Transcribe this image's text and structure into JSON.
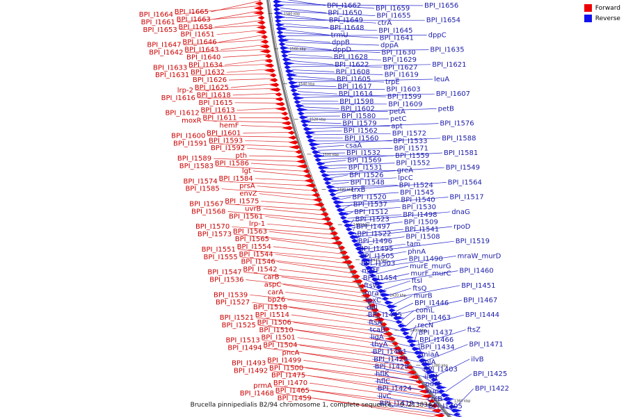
{
  "legend": {
    "forward_label": "Forward",
    "reverse_label": "Reverse",
    "forward_color": "#ee0000",
    "reverse_color": "#1212ee"
  },
  "caption": "Brucella pinnipedialis B2/94 chromosome 1, complete sequence. - 0..2138342",
  "axis": {
    "tick_labels": [
      "1580 kbp",
      "1560 kbp",
      "1540 kbp",
      "1520 kbp",
      "1500 kbp",
      "1480 kbp",
      "1460 kbp",
      "1440 kbp",
      "1420 kbp",
      "1400 kbp",
      "1380 kbp",
      "1360 kbp"
    ]
  },
  "forward_labels": [
    "BPI_I1665",
    "BPI_I1664",
    "BPI_I1663",
    "BPI_I1661",
    "BPI_I1658",
    "BPI_I1653",
    "BPI_I1651",
    "BPI_I1646",
    "BPI_I1647",
    "BPI_I1643",
    "BPI_I1642",
    "BPI_I1640",
    "BPI_I1634",
    "BPI_I1633",
    "BPI_I1632",
    "BPI_I1631",
    "BPI_I1626",
    "BPI_I1625",
    "lrp-2",
    "BPI_I1618",
    "BPI_I1616",
    "BPI_I1615",
    "BPI_I1613",
    "BPI_I1612",
    "BPI_I1611",
    "moxR",
    "hemF",
    "BPI_I1601",
    "BPI_I1600",
    "BPI_I1593",
    "BPI_I1591",
    "BPI_I1592",
    "pth",
    "BPI_I1589",
    "BPI_I1586",
    "BPI_I1583",
    "lgt",
    "BPI_I1584",
    "BPI_I1574",
    "prsA",
    "BPI_I1585",
    "envZ",
    "BPI_I1575",
    "BPI_I1567",
    "uvrB",
    "BPI_I1568",
    "BPI_I1561",
    "lrp-1",
    "BPI_I1570",
    "BPI_I1563",
    "BPI_I1573",
    "BPI_I1565",
    "BPI_I1554",
    "BPI_I1551",
    "BPI_I1544",
    "BPI_I1555",
    "BPI_I1546",
    "BPI_I1542",
    "BPI_I1547",
    "carB",
    "BPI_I1536",
    "aspC",
    "carA",
    "BPI_I1539",
    "bp26",
    "BPI_I1527",
    "BPI_I1518",
    "BPI_I1514",
    "BPI_I1521",
    "BPI_I1506",
    "BPI_I1525",
    "BPI_I1510",
    "BPI_I1501",
    "BPI_I1513",
    "BPI_I1504",
    "BPI_I1494",
    "pncA",
    "BPI_I1499",
    "BPI_I1493",
    "BPI_I1500",
    "BPI_I1492",
    "BPI_I1475",
    "BPI_I1470",
    "prmA",
    "BPI_I1465",
    "BPI_I1468",
    "BPI_I1459"
  ],
  "reverse_labels": [
    "BPI_I1662",
    "BPI_I1659",
    "BPI_I1656",
    "BPI_I1650",
    "BPI_I1655",
    "BPI_I1649",
    "ctrA",
    "BPI_I1654",
    "BPI_I1648",
    "BPI_I1645",
    "trmU",
    "BPI_I1641",
    "dppC",
    "dppB",
    "dppA",
    "dppD",
    "BPI_I1630",
    "BPI_I1635",
    "BPI_I1628",
    "BPI_I1629",
    "BPI_I1622",
    "BPI_I1627",
    "BPI_I1621",
    "BPI_I1608",
    "BPI_I1619",
    "BPI_I1605",
    "trpE",
    "leuA",
    "BPI_I1617",
    "BPI_I1603",
    "BPI_I1614",
    "BPI_I1599",
    "BPI_I1607",
    "BPI_I1598",
    "BPI_I1609",
    "BPI_I1602",
    "petA",
    "petB",
    "BPI_I1580",
    "petC",
    "BPI_I1579",
    "apt",
    "BPI_I1576",
    "BPI_I1562",
    "BPI_I1572",
    "BPI_I1560",
    "BPI_I1533",
    "BPI_I1588",
    "csaA",
    "BPI_I1571",
    "BPI_I1532",
    "BPI_I1559",
    "BPI_I1581",
    "BPI_I1569",
    "BPI_I1552",
    "BPI_I1531",
    "greA",
    "BPI_I1549",
    "BPI_I1526",
    "lpcC",
    "BPI_I1548",
    "BPI_I1524",
    "BPI_I1564",
    "trxB",
    "BPI_I1545",
    "BPI_I1520",
    "BPI_I1540",
    "BPI_I1517",
    "BPI_I1537",
    "BPI_I1530",
    "BPI_I1512",
    "BPI_I1498",
    "dnaG",
    "BPI_I1523",
    "BPI_I1509",
    "BPI_I1497",
    "BPI_I1541",
    "rpoD",
    "BPI_I1522",
    "BPI_I1508",
    "BPI_I1496",
    "tam",
    "BPI_I1519",
    "BPI_I1495",
    "phnA",
    "BPI_I1505",
    "BPI_I1490",
    "mraW_murD",
    "BPI_I1503",
    "murE_murG",
    "metF",
    "murF_murC",
    "BPI_I1460",
    "BPI_I1454",
    "ftsI",
    "ftsW",
    "ftsQ",
    "BPI_I1451",
    "mraY",
    "murB",
    "lpxC",
    "BPI_I1446",
    "BPI_I1467",
    "ddl",
    "comL",
    "BPI_I1445",
    "BPI_I1463",
    "BPI_I1444",
    "ftsA",
    "recN",
    "tcaB",
    "BPI_I1437",
    "ftsZ",
    "ligA",
    "BPI_I1466",
    "thyA",
    "BPI_I1434",
    "BPI_I1471",
    "BPI_I1461",
    "miaA",
    "BPI_I1429",
    "folA",
    "ilvB",
    "BPI_I1428",
    "BPI_I1403",
    "hflK",
    "ilvN",
    "BPI_I1425",
    "hflC",
    "pdxJ",
    "BPI_I1424",
    "kup",
    "BPI_I1422",
    "ilvC",
    "crcB",
    "BPI_I1419",
    "BPI_I1405"
  ]
}
